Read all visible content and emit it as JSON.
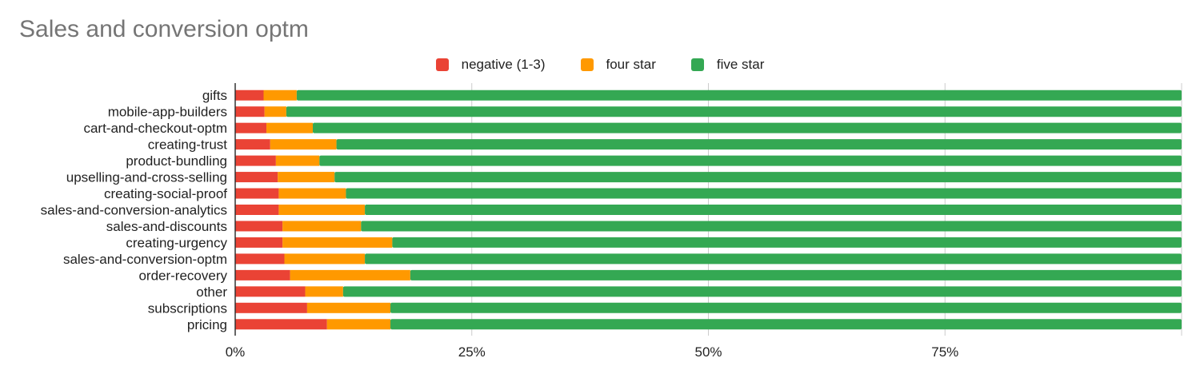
{
  "chart_data": {
    "type": "bar",
    "orientation": "horizontal",
    "stacked": "percent",
    "title": "Sales and conversion optm",
    "xlabel": "",
    "ylabel": "",
    "xlim": [
      0,
      1
    ],
    "x_ticks": [
      0,
      0.25,
      0.5,
      0.75
    ],
    "x_tick_labels": [
      "0%",
      "25%",
      "50%",
      "75%"
    ],
    "grid": true,
    "legend_position": "top",
    "categories": [
      "gifts",
      "mobile-app-builders",
      "cart-and-checkout-optm",
      "creating-trust",
      "product-bundling",
      "upselling-and-cross-selling",
      "creating-social-proof",
      "sales-and-conversion-analytics",
      "sales-and-discounts",
      "creating-urgency",
      "sales-and-conversion-optm",
      "order-recovery",
      "other",
      "subscriptions",
      "pricing"
    ],
    "series": [
      {
        "name": "negative (1-3)",
        "color": "#ea4335",
        "values": [
          0.03,
          0.031,
          0.033,
          0.037,
          0.043,
          0.045,
          0.046,
          0.046,
          0.05,
          0.05,
          0.052,
          0.058,
          0.074,
          0.076,
          0.097
        ]
      },
      {
        "name": "four star",
        "color": "#ff9900",
        "values": [
          0.035,
          0.023,
          0.049,
          0.07,
          0.046,
          0.06,
          0.071,
          0.091,
          0.083,
          0.116,
          0.085,
          0.127,
          0.04,
          0.088,
          0.067
        ]
      },
      {
        "name": "five star",
        "color": "#34a853",
        "values": [
          0.935,
          0.946,
          0.918,
          0.893,
          0.911,
          0.895,
          0.883,
          0.863,
          0.867,
          0.834,
          0.863,
          0.815,
          0.886,
          0.836,
          0.836
        ]
      }
    ]
  }
}
